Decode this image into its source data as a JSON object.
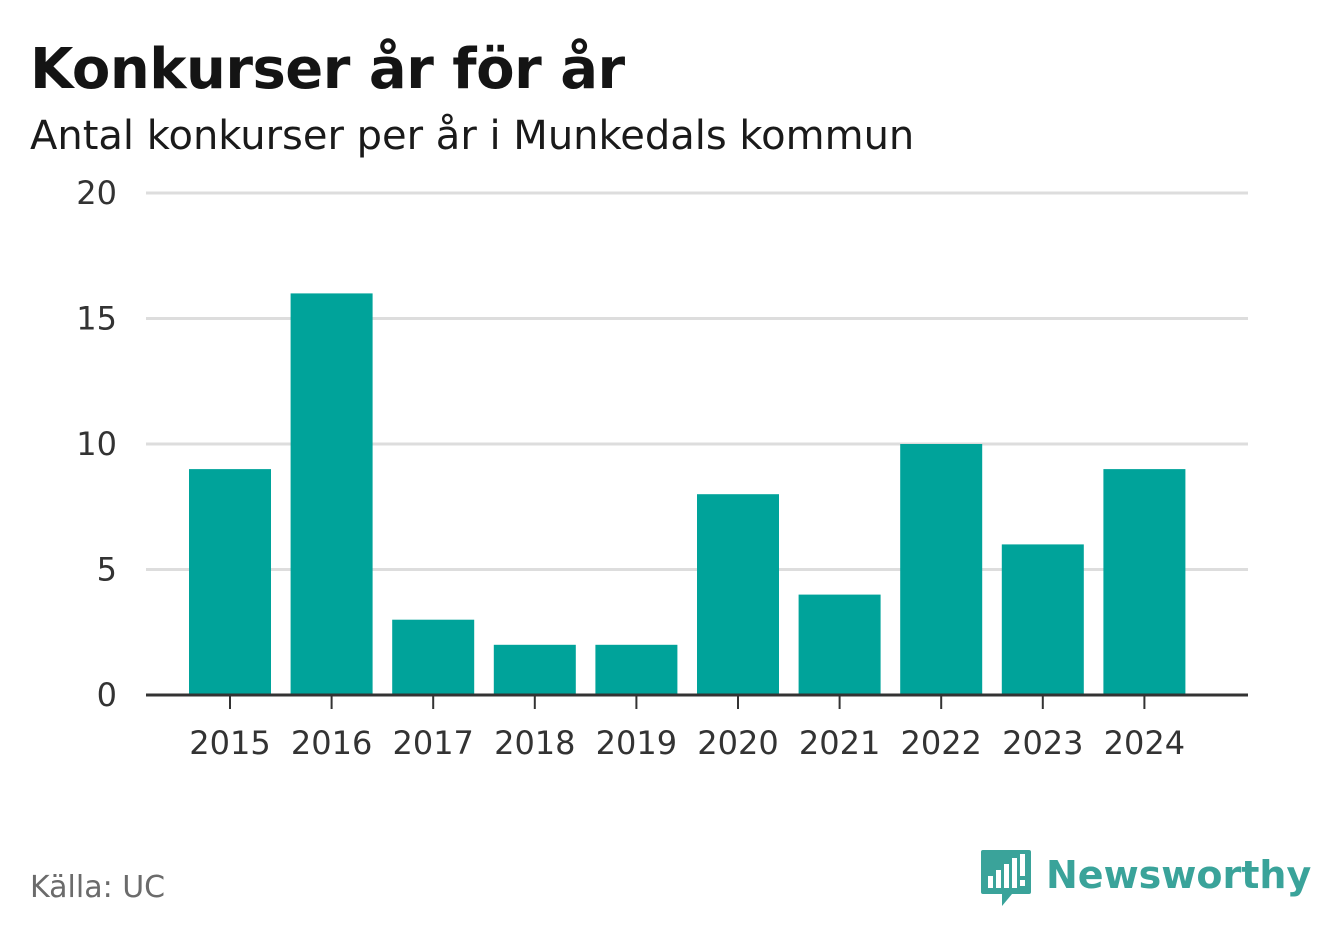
{
  "title": "Konkurser år för år",
  "subtitle": "Antal konkurser per år i Munkedals kommun",
  "source": "Källa: UC",
  "brand": {
    "name": "Newsworthy",
    "icon": "newsworthy-logo-icon",
    "color": "#3aa39a"
  },
  "colors": {
    "bar": "#00a39a",
    "grid": "#dddddd",
    "axis": "#333333"
  },
  "chart_data": {
    "type": "bar",
    "title": "Konkurser år för år",
    "subtitle": "Antal konkurser per år i Munkedals kommun",
    "xlabel": "",
    "ylabel": "",
    "categories": [
      "2015",
      "2016",
      "2017",
      "2018",
      "2019",
      "2020",
      "2021",
      "2022",
      "2023",
      "2024"
    ],
    "values": [
      9,
      16,
      3,
      2,
      2,
      8,
      4,
      10,
      6,
      9
    ],
    "ylim": [
      0,
      20
    ],
    "yticks": [
      0,
      5,
      10,
      15,
      20
    ],
    "grid": true,
    "legend": "none"
  }
}
